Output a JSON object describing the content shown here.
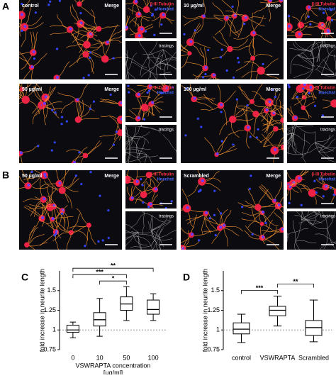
{
  "panels": [
    {
      "label": "A",
      "conditions": [
        {
          "name": "control",
          "merge": "Merge",
          "stain1": "β-III Tubulin",
          "stain2": "Hoechst",
          "tracings": "tracings"
        },
        {
          "name": "10 µg/ml",
          "merge": "Merge",
          "stain1": "β-III Tubulin",
          "stain2": "Hoechst",
          "tracings": "tracings"
        },
        {
          "name": "50 µg/ml",
          "merge": "Merge",
          "stain1": "β-III Tubulin",
          "stain2": "Hoechst",
          "tracings": "tracings"
        },
        {
          "name": "100 µg/ml",
          "merge": "Merge",
          "stain1": "β-III Tubulin",
          "stain2": "Hoechst",
          "tracings": "tracings"
        }
      ]
    },
    {
      "label": "B",
      "conditions": [
        {
          "name": "50 µg/ml",
          "merge": "Merge",
          "stain1": "β-III Tubulin",
          "stain2": "Hoechst",
          "tracings": "tracings"
        },
        {
          "name": "Scrambled",
          "merge": "Merge",
          "stain1": "β-III Tubulin",
          "stain2": "Hoechst",
          "tracings": "tracings"
        }
      ]
    }
  ],
  "chart_data": [
    {
      "type": "box",
      "panel_label": "C",
      "ylabel": "fold increase in neurite length",
      "xlabel": [
        "VSWRAPTA concentration",
        "[µg/ml]"
      ],
      "categories": [
        "0",
        "10",
        "50",
        "100"
      ],
      "boxes": [
        {
          "min": 0.9,
          "q1": 0.97,
          "median": 1.0,
          "q3": 1.06,
          "max": 1.1
        },
        {
          "min": 0.92,
          "q1": 1.05,
          "median": 1.13,
          "q3": 1.22,
          "max": 1.4
        },
        {
          "min": 1.12,
          "q1": 1.25,
          "median": 1.33,
          "q3": 1.42,
          "max": 1.55
        },
        {
          "min": 1.12,
          "q1": 1.2,
          "median": 1.26,
          "q3": 1.38,
          "max": 1.46
        }
      ],
      "refline": 1,
      "ylim": [
        0.75,
        1.75
      ],
      "yticks": [
        0.75,
        1,
        1.25,
        1.5
      ],
      "brackets": [
        {
          "label": "*",
          "from": "10",
          "to": "50"
        },
        {
          "label": "***",
          "from": "0",
          "to": "50"
        },
        {
          "label": "**",
          "from": "0",
          "to": "100"
        }
      ]
    },
    {
      "type": "box",
      "panel_label": "D",
      "ylabel": "fold increase in neurite length",
      "categories": [
        "control",
        "VSWRAPTA",
        "Scrambled"
      ],
      "boxes": [
        {
          "min": 0.84,
          "q1": 0.95,
          "median": 1.01,
          "q3": 1.09,
          "max": 1.2
        },
        {
          "min": 1.05,
          "q1": 1.18,
          "median": 1.25,
          "q3": 1.3,
          "max": 1.43
        },
        {
          "min": 0.85,
          "q1": 0.93,
          "median": 1.03,
          "q3": 1.12,
          "max": 1.38
        }
      ],
      "refline": 1,
      "ylim": [
        0.75,
        1.75
      ],
      "yticks": [
        0.75,
        1,
        1.25,
        1.5
      ],
      "brackets": [
        {
          "label": "***",
          "from": "control",
          "to": "VSWRAPTA"
        },
        {
          "label": "**",
          "from": "VSWRAPTA",
          "to": "Scrambled"
        }
      ]
    }
  ]
}
